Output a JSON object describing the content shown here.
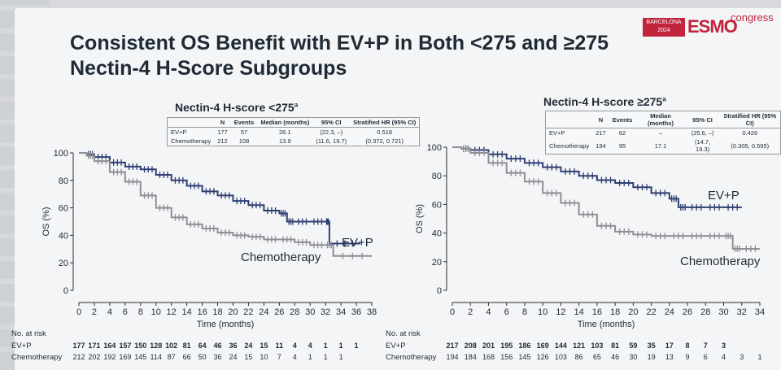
{
  "title": "Consistent OS Benefit with EV+P in Both <275 and ≥275 Nectin-4 H-Score Subgroups",
  "logo": {
    "city": "BARCELONA 2024",
    "name": "ESMO",
    "suffix": "congress"
  },
  "colors": {
    "evp": "#2e3f73",
    "chemo": "#8d8f93",
    "axis": "#2b2b2b"
  },
  "panels": [
    {
      "title": "Nectin-4 H-score <275",
      "title_sup": "a",
      "table": {
        "headers": [
          "",
          "N",
          "Events",
          "Median (months)",
          "95% CI",
          "Stratified HR (95% CI)"
        ],
        "rows": [
          [
            "EV+P",
            "177",
            "57",
            "26.1",
            "(22.3, –)",
            "0.518"
          ],
          [
            "Chemotherapy",
            "212",
            "108",
            "13.9",
            "(11.6, 19.7)",
            "(0.372, 0.721)"
          ]
        ]
      },
      "at_risk_title": "No. at risk",
      "at_risk": [
        {
          "label": "EV+P",
          "values": [
            "177",
            "171",
            "164",
            "157",
            "150",
            "128",
            "102",
            "81",
            "64",
            "46",
            "36",
            "24",
            "15",
            "11",
            "4",
            "4",
            "1",
            "1",
            "1"
          ]
        },
        {
          "label": "Chemotherapy",
          "values": [
            "212",
            "202",
            "192",
            "169",
            "145",
            "114",
            "87",
            "66",
            "50",
            "36",
            "24",
            "15",
            "10",
            "7",
            "4",
            "1",
            "1",
            "1"
          ]
        }
      ]
    },
    {
      "title": "Nectin-4 H-score ≥275",
      "title_sup": "a",
      "table": {
        "headers": [
          "",
          "N",
          "Events",
          "Median (months)",
          "95% CI",
          "Stratified HR (95% CI)"
        ],
        "rows": [
          [
            "EV+P",
            "217",
            "62",
            "–",
            "(25.6, –)",
            "0.426"
          ],
          [
            "Chemotherapy",
            "194",
            "95",
            "17.1",
            "(14.7, 19.3)",
            "(0.305, 0.595)"
          ]
        ]
      },
      "at_risk_title": "No. at risk",
      "at_risk": [
        {
          "label": "EV+P",
          "values": [
            "217",
            "208",
            "201",
            "195",
            "186",
            "169",
            "144",
            "121",
            "103",
            "81",
            "59",
            "35",
            "17",
            "8",
            "7",
            "3"
          ]
        },
        {
          "label": "Chemotherapy",
          "values": [
            "194",
            "184",
            "168",
            "156",
            "145",
            "126",
            "103",
            "86",
            "65",
            "46",
            "30",
            "19",
            "13",
            "9",
            "6",
            "4",
            "3",
            "1"
          ]
        }
      ]
    }
  ],
  "chart_data": [
    {
      "type": "line",
      "title": "Nectin-4 H-score <275",
      "xlabel": "Time (months)",
      "ylabel": "OS (%)",
      "xlim": [
        0,
        38
      ],
      "ylim": [
        0,
        100
      ],
      "xticks": [
        0,
        2,
        4,
        6,
        8,
        10,
        12,
        14,
        16,
        18,
        20,
        22,
        24,
        26,
        28,
        30,
        32,
        34,
        36,
        38
      ],
      "yticks": [
        0,
        20,
        40,
        60,
        80,
        100
      ],
      "series": [
        {
          "name": "EV+P",
          "x": [
            0,
            1,
            2,
            4,
            6,
            8,
            10,
            12,
            14,
            16,
            18,
            20,
            22,
            24,
            26,
            27,
            28,
            30,
            32,
            32.5,
            36.5
          ],
          "y": [
            100,
            99,
            97,
            93,
            90,
            88,
            84,
            80,
            76,
            72,
            69,
            65,
            62,
            58,
            56,
            50,
            50,
            50,
            50,
            34,
            34
          ]
        },
        {
          "name": "Chemotherapy",
          "x": [
            0,
            1,
            2,
            4,
            6,
            8,
            10,
            12,
            14,
            16,
            18,
            20,
            22,
            24,
            26,
            28,
            30,
            32,
            33,
            38
          ],
          "y": [
            100,
            98,
            94,
            86,
            79,
            69,
            60,
            53,
            48,
            45,
            42,
            40,
            39,
            37,
            37,
            35,
            33,
            33,
            25,
            25
          ]
        }
      ]
    },
    {
      "type": "line",
      "title": "Nectin-4 H-score ≥275",
      "xlabel": "Time (months)",
      "ylabel": "OS (%)",
      "xlim": [
        0,
        34
      ],
      "ylim": [
        0,
        100
      ],
      "xticks": [
        0,
        2,
        4,
        6,
        8,
        10,
        12,
        14,
        16,
        18,
        20,
        22,
        24,
        26,
        28,
        30,
        32,
        34
      ],
      "yticks": [
        0,
        20,
        40,
        60,
        80,
        100
      ],
      "series": [
        {
          "name": "EV+P",
          "x": [
            0,
            1,
            2,
            4,
            6,
            8,
            10,
            12,
            14,
            16,
            18,
            20,
            22,
            24,
            25,
            26,
            28,
            30,
            32
          ],
          "y": [
            100,
            99,
            98,
            95,
            92,
            89,
            86,
            83,
            80,
            77,
            75,
            72,
            68,
            64,
            58,
            58,
            58,
            58,
            58
          ]
        },
        {
          "name": "Chemotherapy",
          "x": [
            0,
            1,
            2,
            4,
            6,
            8,
            10,
            12,
            14,
            16,
            18,
            20,
            22,
            24,
            26,
            28,
            30,
            31,
            32,
            34
          ],
          "y": [
            100,
            99,
            96,
            89,
            82,
            76,
            68,
            61,
            53,
            45,
            41,
            39,
            38,
            38,
            38,
            38,
            38,
            29,
            29,
            29
          ]
        }
      ]
    }
  ]
}
